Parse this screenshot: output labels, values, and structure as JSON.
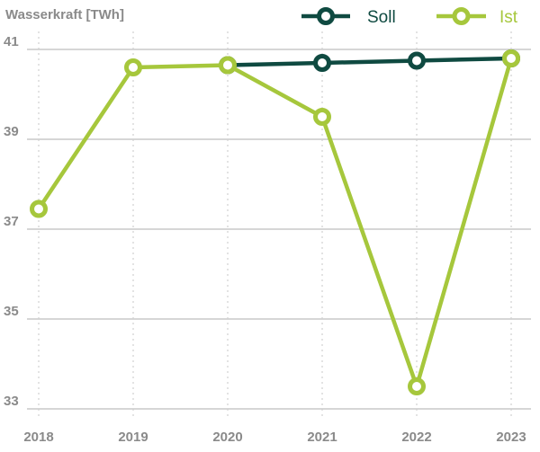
{
  "chart_data": {
    "type": "line",
    "title": "",
    "ylabel": "Wasserkraft [TWh]",
    "xlabel": "",
    "categories": [
      "2018",
      "2019",
      "2020",
      "2021",
      "2022",
      "2023"
    ],
    "ylim": [
      33,
      41
    ],
    "yticks": [
      "33",
      "35",
      "37",
      "39",
      "41"
    ],
    "grid": true,
    "legend_position": "top-right",
    "series": [
      {
        "name": "Soll",
        "color": "#0f4a41",
        "values": [
          null,
          null,
          40.65,
          40.7,
          40.75,
          40.8
        ]
      },
      {
        "name": "Ist",
        "color": "#a6c73c",
        "values": [
          37.45,
          40.6,
          40.65,
          39.5,
          33.5,
          40.8
        ]
      }
    ]
  }
}
